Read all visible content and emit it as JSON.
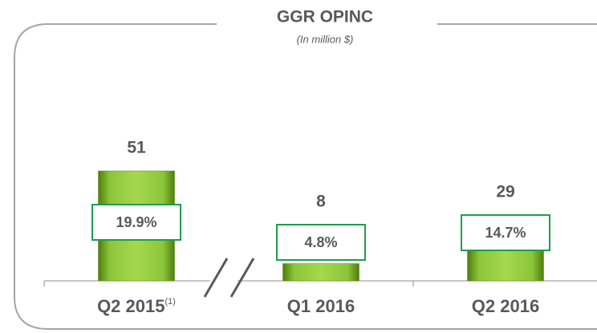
{
  "chart_data": {
    "type": "bar",
    "title": "GGR OPINC",
    "subtitle": "(In million $)",
    "categories": [
      "Q2 2015",
      "Q1 2016",
      "Q2 2016"
    ],
    "footnote_mark": "(1)",
    "values": [
      51,
      8,
      29
    ],
    "color": "#7fb51f",
    "margins": [
      19.9,
      4.8,
      14.7
    ],
    "margin_labels": [
      "19.9%",
      "4.8%",
      "14.7%"
    ]
  }
}
